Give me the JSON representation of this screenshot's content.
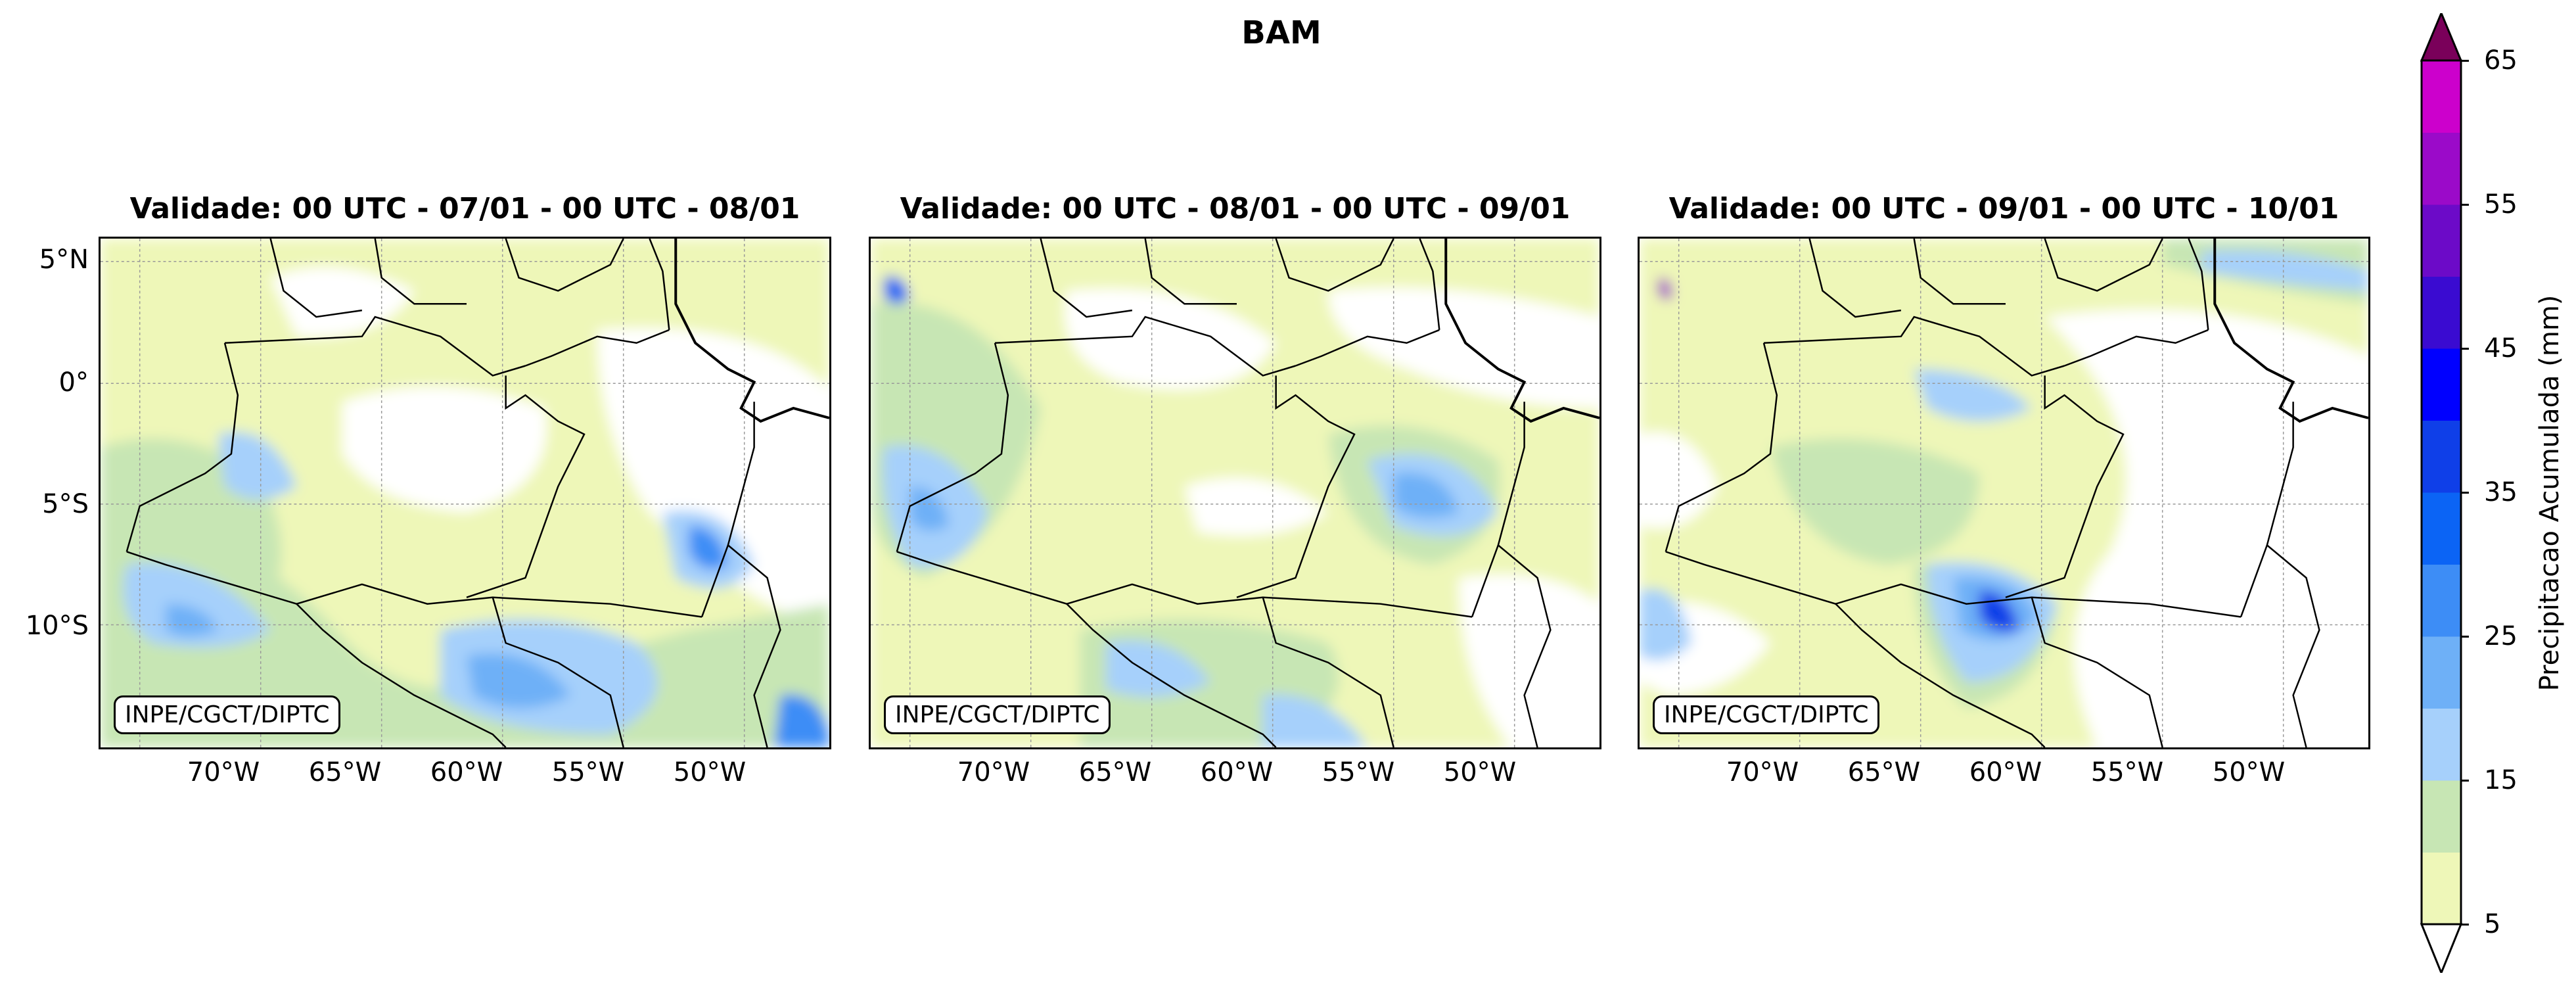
{
  "title": "BAM",
  "panels": [
    {
      "title": "Validade: 00 UTC - 07/01 - 00 UTC - 08/01",
      "credit": "INPE/CGCT/DIPTC"
    },
    {
      "title": "Validade: 00 UTC - 08/01 - 00 UTC - 09/01",
      "credit": "INPE/CGCT/DIPTC"
    },
    {
      "title": "Validade: 00 UTC - 09/01 - 00 UTC - 10/01",
      "credit": "INPE/CGCT/DIPTC"
    }
  ],
  "lon_ticks": [
    "70°W",
    "65°W",
    "60°W",
    "55°W",
    "50°W"
  ],
  "lat_ticks": [
    "5°N",
    "0°",
    "5°S",
    "10°S"
  ],
  "colorbar": {
    "label": "Precipitacao Acumulada (mm)",
    "tick_labels": [
      "5",
      "15",
      "25",
      "35",
      "45",
      "55",
      "65"
    ],
    "levels": [
      5,
      10,
      15,
      20,
      25,
      30,
      35,
      40,
      45,
      50,
      55,
      60,
      65
    ],
    "colors": [
      "#eef7b8",
      "#c7e6b4",
      "#a6d0fb",
      "#6eb0f7",
      "#3d8df6",
      "#0b64f5",
      "#0f3fe8",
      "#0000ff",
      "#3a0bd1",
      "#6c0ac8",
      "#9b0ac9",
      "#cc00cc",
      "#7a005a"
    ]
  }
}
